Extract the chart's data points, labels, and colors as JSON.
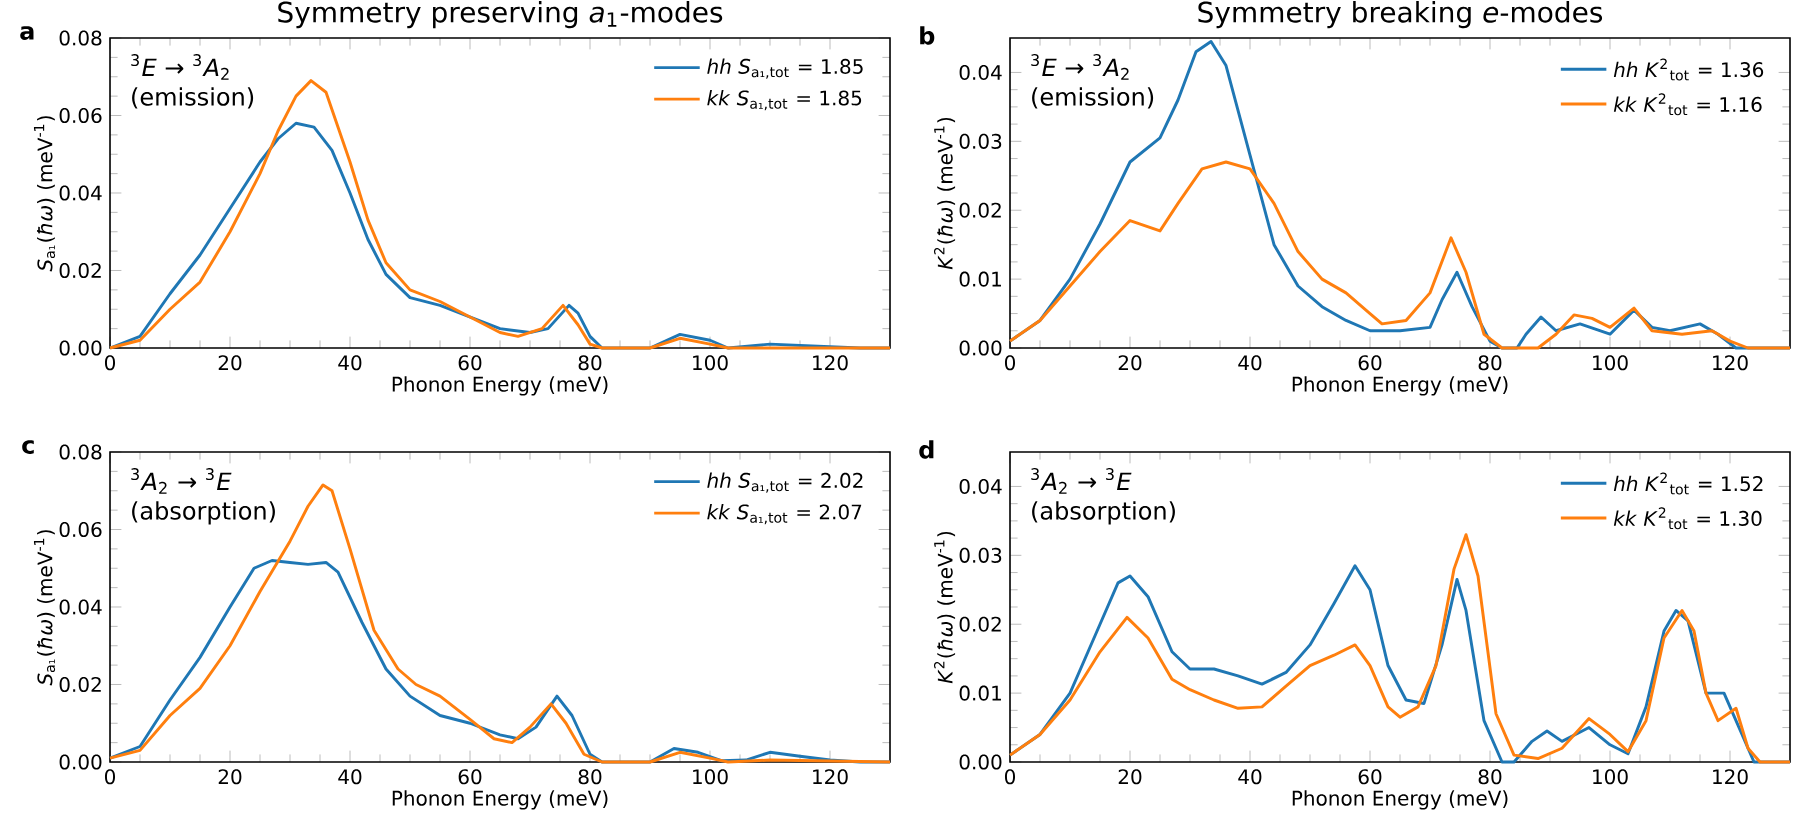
{
  "chart_data": [
    {
      "type": "line",
      "title": "Symmetry preserving *a*$_{1}$-modes",
      "xlabel": "Phonon Energy (meV)",
      "ylabel": "*S*$_{a₁}$(*ħω*) (meV$^{-1}$)",
      "annotations": [
        "**a**",
        "$^{3}$*E* → $^{3}$*A*$_{2}$",
        "(emission)"
      ],
      "xlim": [
        0,
        130
      ],
      "ylim": [
        0,
        0.08
      ],
      "xticks": [
        0,
        20,
        40,
        60,
        80,
        100,
        120
      ],
      "yticks": [
        {
          "value": 0,
          "label": "0.00"
        },
        {
          "value": 0.02,
          "label": "0.02"
        },
        {
          "value": 0.04,
          "label": "0.04"
        },
        {
          "value": 0.06,
          "label": "0.06"
        },
        {
          "value": 0.08,
          "label": "0.08"
        }
      ],
      "legend": "top right",
      "series": [
        {
          "name": "*hh* *S*$_{a₁,tot}$ = 1.85",
          "color": "#1f77b4",
          "x": [
            0,
            5,
            10,
            15,
            20,
            25,
            28,
            31,
            34,
            37,
            40,
            43,
            46,
            50,
            55,
            60,
            65,
            70,
            73,
            76.5,
            78,
            80,
            82,
            90,
            95,
            100,
            103,
            110,
            120,
            125,
            130
          ],
          "values": [
            0,
            0.003,
            0.014,
            0.024,
            0.036,
            0.048,
            0.054,
            0.058,
            0.057,
            0.051,
            0.04,
            0.028,
            0.019,
            0.013,
            0.011,
            0.008,
            0.005,
            0.004,
            0.005,
            0.011,
            0.009,
            0.003,
            0,
            0,
            0.0035,
            0.002,
            0,
            0.001,
            0.0003,
            0,
            0
          ]
        },
        {
          "name": "*kk* *S*$_{a₁,tot}$ = 1.85",
          "color": "#ff7f0e",
          "x": [
            0,
            5,
            10,
            15,
            20,
            25,
            28,
            31,
            33.5,
            36,
            40,
            43,
            46,
            50,
            55,
            60,
            65,
            68,
            72,
            75.5,
            78,
            80,
            82,
            90,
            95,
            100,
            103,
            130
          ],
          "values": [
            0,
            0.002,
            0.01,
            0.017,
            0.03,
            0.045,
            0.056,
            0.065,
            0.069,
            0.066,
            0.048,
            0.033,
            0.022,
            0.015,
            0.012,
            0.008,
            0.004,
            0.003,
            0.005,
            0.011,
            0.006,
            0.001,
            0,
            0,
            0.0025,
            0.001,
            0,
            0
          ]
        }
      ]
    },
    {
      "type": "line",
      "title": "Symmetry breaking *e*-modes",
      "xlabel": "Phonon Energy (meV)",
      "ylabel": "*K*$^{2}$(*ħω*) (meV$^{-1}$)",
      "annotations": [
        "**b**",
        "$^{3}$*E* → $^{3}$*A*$_{2}$",
        "(emission)"
      ],
      "xlim": [
        0,
        130
      ],
      "ylim": [
        0,
        0.045
      ],
      "xticks": [
        0,
        20,
        40,
        60,
        80,
        100,
        120
      ],
      "yticks": [
        {
          "value": 0,
          "label": "0.00"
        },
        {
          "value": 0.01,
          "label": "0.01"
        },
        {
          "value": 0.02,
          "label": "0.02"
        },
        {
          "value": 0.03,
          "label": "0.03"
        },
        {
          "value": 0.04,
          "label": "0.04"
        }
      ],
      "legend": "top right",
      "series": [
        {
          "name": "*hh* *K*$^{2}$$_{tot}$ = 1.36",
          "color": "#1f77b4",
          "x": [
            0,
            5,
            10,
            15,
            20,
            25,
            28,
            31,
            33.5,
            36,
            40,
            44,
            48,
            52,
            56,
            60,
            65,
            70,
            72,
            74.5,
            77,
            80,
            82,
            84.5,
            86,
            88.5,
            91,
            95,
            100,
            104,
            107,
            110,
            115,
            118,
            121,
            130
          ],
          "values": [
            0.001,
            0.004,
            0.01,
            0.018,
            0.027,
            0.0305,
            0.036,
            0.043,
            0.0445,
            0.041,
            0.028,
            0.015,
            0.009,
            0.006,
            0.004,
            0.0025,
            0.0025,
            0.003,
            0.007,
            0.011,
            0.006,
            0.001,
            0,
            0,
            0.002,
            0.0045,
            0.0025,
            0.0035,
            0.002,
            0.0055,
            0.003,
            0.0025,
            0.0035,
            0.002,
            0,
            0
          ]
        },
        {
          "name": "*kk* *K*$^{2}$$_{tot}$ = 1.16",
          "color": "#ff7f0e",
          "x": [
            0,
            5,
            10,
            15,
            20,
            25,
            28,
            32,
            36,
            40,
            44,
            48,
            52,
            56,
            60,
            62,
            66,
            70,
            73.5,
            76,
            79,
            82,
            88,
            91,
            94,
            97,
            100,
            104,
            107,
            112,
            117,
            120,
            123,
            130
          ],
          "values": [
            0.001,
            0.004,
            0.009,
            0.014,
            0.0185,
            0.017,
            0.021,
            0.026,
            0.027,
            0.026,
            0.021,
            0.014,
            0.01,
            0.008,
            0.005,
            0.0035,
            0.004,
            0.008,
            0.016,
            0.011,
            0.002,
            0,
            0,
            0.002,
            0.0048,
            0.0043,
            0.003,
            0.0058,
            0.0025,
            0.002,
            0.0025,
            0.001,
            0,
            0
          ]
        }
      ]
    },
    {
      "type": "line",
      "xlabel": "Phonon Energy (meV)",
      "ylabel": "*S*$_{a₁}$(*ħω*) (meV$^{-1}$)",
      "annotations": [
        "**c**",
        "$^{3}$*A*$_{2}$ → $^{3}$*E*",
        "(absorption)"
      ],
      "xlim": [
        0,
        130
      ],
      "ylim": [
        0,
        0.08
      ],
      "xticks": [
        0,
        20,
        40,
        60,
        80,
        100,
        120
      ],
      "yticks": [
        {
          "value": 0,
          "label": "0.00"
        },
        {
          "value": 0.02,
          "label": "0.02"
        },
        {
          "value": 0.04,
          "label": "0.04"
        },
        {
          "value": 0.06,
          "label": "0.06"
        },
        {
          "value": 0.08,
          "label": "0.08"
        }
      ],
      "legend": "top right",
      "series": [
        {
          "name": "*hh* *S*$_{a₁,tot}$ = 2.02",
          "color": "#1f77b4",
          "x": [
            0,
            5,
            10,
            15,
            20,
            24,
            27,
            30,
            33,
            36,
            38,
            42,
            46,
            50,
            55,
            60,
            65,
            68,
            71,
            74.5,
            77,
            80,
            82,
            90,
            94,
            98,
            102,
            106,
            110,
            115,
            120,
            125,
            130
          ],
          "values": [
            0.001,
            0.004,
            0.016,
            0.027,
            0.04,
            0.05,
            0.052,
            0.0515,
            0.051,
            0.0515,
            0.049,
            0.036,
            0.024,
            0.017,
            0.012,
            0.01,
            0.007,
            0.006,
            0.009,
            0.017,
            0.012,
            0.002,
            0,
            0,
            0.0035,
            0.0025,
            0.0003,
            0.0005,
            0.0025,
            0.0015,
            0.0005,
            0,
            0
          ]
        },
        {
          "name": "*kk* *S*$_{a₁,tot}$ = 2.07",
          "color": "#ff7f0e",
          "x": [
            0,
            5,
            10,
            15,
            20,
            25,
            30,
            33,
            35.5,
            37,
            40,
            44,
            48,
            51,
            55,
            60,
            64,
            67,
            70,
            73.5,
            76,
            79,
            82,
            90,
            95,
            100,
            103,
            110,
            130
          ],
          "values": [
            0.001,
            0.003,
            0.012,
            0.019,
            0.03,
            0.044,
            0.057,
            0.066,
            0.0715,
            0.07,
            0.055,
            0.034,
            0.024,
            0.02,
            0.017,
            0.011,
            0.006,
            0.005,
            0.009,
            0.015,
            0.01,
            0.002,
            0,
            0,
            0.0025,
            0.001,
            0,
            0.0005,
            0
          ]
        }
      ]
    },
    {
      "type": "line",
      "xlabel": "Phonon Energy (meV)",
      "ylabel": "*K*$^{2}$(*ħω*) (meV$^{-1}$)",
      "annotations": [
        "**d**",
        "$^{3}$*A*$_{2}$ → $^{3}$*E*",
        "(absorption)"
      ],
      "xlim": [
        0,
        130
      ],
      "ylim": [
        0,
        0.045
      ],
      "xticks": [
        0,
        20,
        40,
        60,
        80,
        100,
        120
      ],
      "yticks": [
        {
          "value": 0,
          "label": "0.00"
        },
        {
          "value": 0.01,
          "label": "0.01"
        },
        {
          "value": 0.02,
          "label": "0.02"
        },
        {
          "value": 0.03,
          "label": "0.03"
        },
        {
          "value": 0.04,
          "label": "0.04"
        }
      ],
      "legend": "top right",
      "series": [
        {
          "name": "*hh* *K*$^{2}$$_{tot}$ = 1.52",
          "color": "#1f77b4",
          "x": [
            0,
            5,
            10,
            15,
            18,
            20,
            23,
            27,
            30,
            34,
            38,
            42,
            46,
            50,
            54,
            57.5,
            60,
            63,
            66,
            69,
            72,
            74.5,
            76,
            79,
            82,
            84,
            87,
            89.5,
            92,
            96.5,
            100,
            103,
            106,
            109,
            111,
            113,
            116,
            119,
            121,
            124,
            130
          ],
          "values": [
            0.001,
            0.004,
            0.01,
            0.02,
            0.026,
            0.027,
            0.024,
            0.016,
            0.0135,
            0.0135,
            0.0125,
            0.0113,
            0.013,
            0.017,
            0.023,
            0.0285,
            0.025,
            0.014,
            0.009,
            0.0085,
            0.017,
            0.0265,
            0.022,
            0.006,
            0,
            0,
            0.003,
            0.0045,
            0.003,
            0.005,
            0.0025,
            0.0012,
            0.008,
            0.019,
            0.022,
            0.0205,
            0.01,
            0.01,
            0.006,
            0,
            0
          ]
        },
        {
          "name": "*kk* *K*$^{2}$$_{tot}$ = 1.30",
          "color": "#ff7f0e",
          "x": [
            0,
            5,
            10,
            15,
            19.5,
            23,
            27,
            30,
            34,
            38,
            42,
            46,
            50,
            54,
            57.5,
            60,
            63,
            65,
            68,
            71,
            74,
            76,
            78,
            81,
            84,
            88,
            92,
            96.5,
            100,
            103,
            106,
            109,
            112,
            114,
            116,
            118,
            121,
            123,
            125,
            130
          ],
          "values": [
            0.001,
            0.004,
            0.009,
            0.016,
            0.021,
            0.018,
            0.012,
            0.0105,
            0.009,
            0.0078,
            0.008,
            0.011,
            0.014,
            0.0155,
            0.017,
            0.014,
            0.008,
            0.0065,
            0.008,
            0.014,
            0.028,
            0.033,
            0.027,
            0.007,
            0.001,
            0.0005,
            0.002,
            0.0063,
            0.004,
            0.0015,
            0.006,
            0.018,
            0.022,
            0.019,
            0.01,
            0.006,
            0.0078,
            0.002,
            0,
            0
          ]
        }
      ]
    }
  ]
}
